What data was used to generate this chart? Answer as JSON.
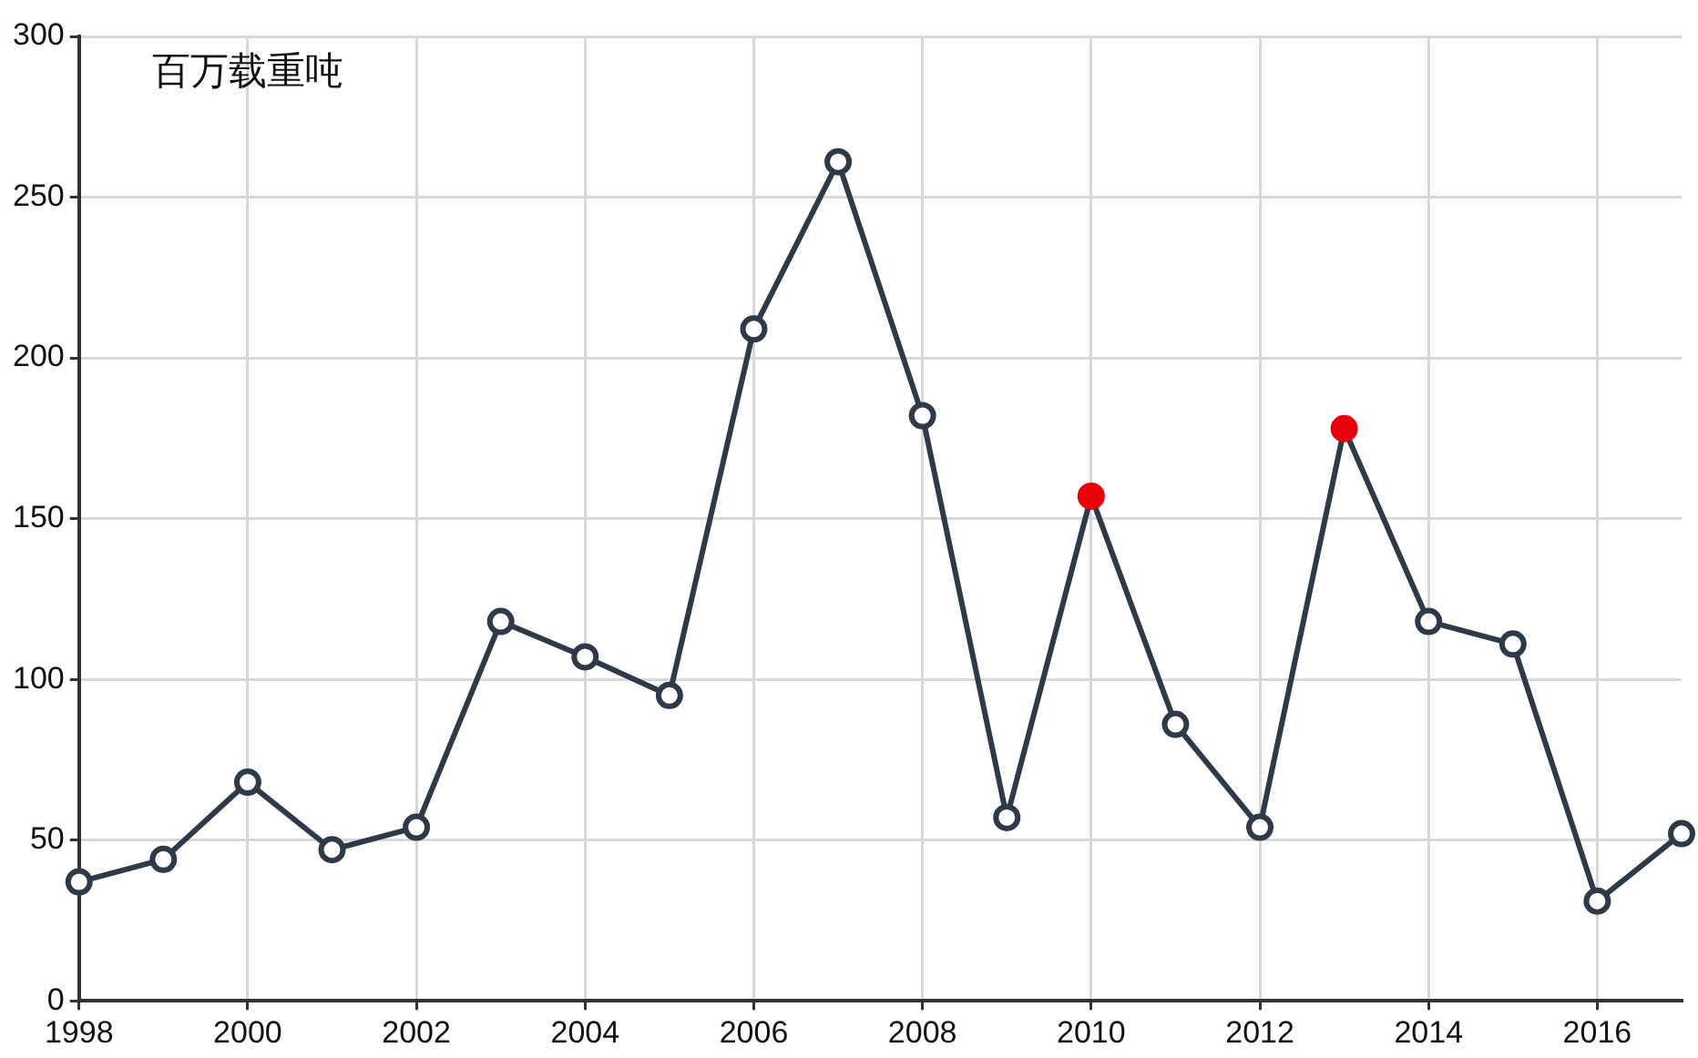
{
  "chart_data": {
    "type": "line",
    "ylabel": "百万载重吨",
    "x": [
      1998,
      1999,
      2000,
      2001,
      2002,
      2003,
      2004,
      2005,
      2006,
      2007,
      2008,
      2009,
      2010,
      2011,
      2012,
      2013,
      2014,
      2015,
      2016,
      2017
    ],
    "series": [
      {
        "color": "#2e3a48",
        "colors": [
          "#ffffff",
          "#ffffff",
          "#ffffff",
          "#ffffff",
          "#ffffff",
          "#ffffff",
          "#ffffff",
          "#ffffff",
          "#ffffff",
          "#ffffff",
          "#ffffff",
          "#ffffff",
          "#e8000b",
          "#ffffff",
          "#ffffff",
          "#e8000b",
          "#ffffff",
          "#ffffff",
          "#ffffff",
          "#ffffff"
        ],
        "values": [
          37,
          44,
          68,
          47,
          54,
          118,
          107,
          95,
          209,
          261,
          182,
          57,
          157,
          86,
          54,
          178,
          118,
          111,
          31,
          52
        ]
      }
    ],
    "xlim": [
      1998,
      2017
    ],
    "xticks": [
      1998,
      2000,
      2002,
      2004,
      2006,
      2008,
      2010,
      2012,
      2014,
      2016
    ],
    "ylim": [
      0,
      300
    ],
    "yticks": [
      0,
      50,
      100,
      150,
      200,
      250,
      300
    ],
    "grid": true,
    "legend": false,
    "marker": "circle",
    "line_style": "solid"
  }
}
